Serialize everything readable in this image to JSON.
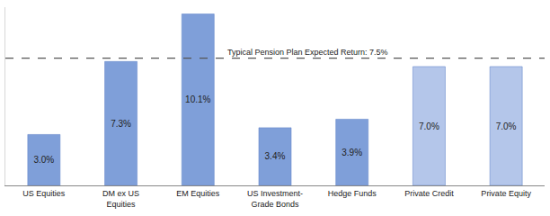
{
  "chart_data": {
    "type": "bar",
    "categories": [
      "US Equities",
      "DM ex US Equities",
      "EM Equities",
      "US Investment-Grade Bonds",
      "Hedge Funds",
      "Private Credit",
      "Private Equity"
    ],
    "values": [
      3.0,
      7.3,
      10.1,
      3.4,
      3.9,
      7.0,
      7.0
    ],
    "value_labels": [
      "3.0%",
      "7.3%",
      "10.1%",
      "3.4%",
      "3.9%",
      "7.0%",
      "7.0%"
    ],
    "colors": [
      "#7f9fd9",
      "#7f9fd9",
      "#7f9fd9",
      "#7f9fd9",
      "#7f9fd9",
      "#b4c6ea",
      "#b4c6ea"
    ],
    "ylim": [
      0,
      10.5
    ],
    "yticks": [],
    "grid": false,
    "data_labels": true,
    "tick_labels": "x",
    "annotations": [
      {
        "text": "Typical Pension Plan Expected Return: 7.5%",
        "y": 7.5,
        "line_style": "dashed"
      }
    ]
  }
}
